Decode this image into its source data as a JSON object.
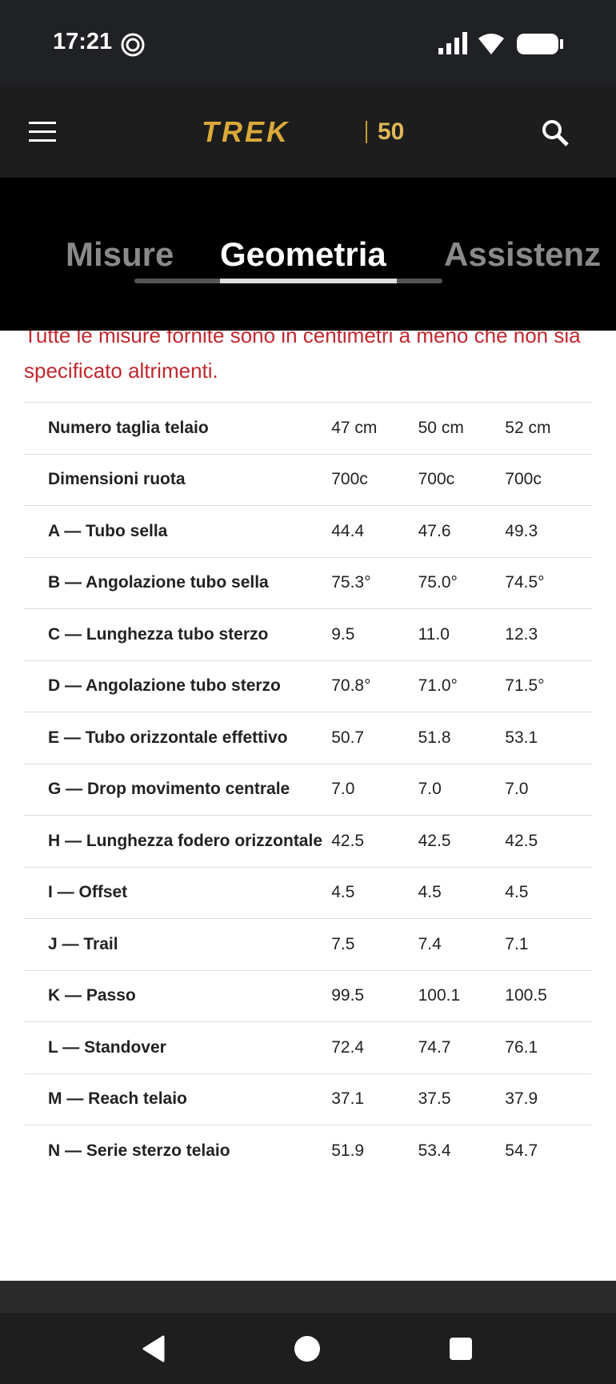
{
  "status": {
    "time": "17:21"
  },
  "header": {
    "brand": "TREK",
    "badge": "50"
  },
  "tabs": [
    "Misure",
    "Geometria",
    "Assistenz"
  ],
  "note": "Tutte le misure fornite sono in centimetri a meno che non sia specificato altrimenti.",
  "table": {
    "rows": [
      [
        "Numero taglia telaio",
        "47 cm",
        "50 cm",
        "52 cm"
      ],
      [
        "Dimensioni ruota",
        "700c",
        "700c",
        "700c"
      ],
      [
        "A — Tubo sella",
        "44.4",
        "47.6",
        "49.3"
      ],
      [
        "B — Angolazione tubo sella",
        "75.3°",
        "75.0°",
        "74.5°"
      ],
      [
        "C — Lunghezza tubo sterzo",
        "9.5",
        "11.0",
        "12.3"
      ],
      [
        "D — Angolazione tubo sterzo",
        "70.8°",
        "71.0°",
        "71.5°"
      ],
      [
        "E — Tubo orizzontale effettivo",
        "50.7",
        "51.8",
        "53.1"
      ],
      [
        "G — Drop movimento centrale",
        "7.0",
        "7.0",
        "7.0"
      ],
      [
        "H — Lunghezza fodero orizzontale",
        "42.5",
        "42.5",
        "42.5"
      ],
      [
        "I — Offset",
        "4.5",
        "4.5",
        "4.5"
      ],
      [
        "J — Trail",
        "7.5",
        "7.4",
        "7.1"
      ],
      [
        "K — Passo",
        "99.5",
        "100.1",
        "100.5"
      ],
      [
        "L — Standover",
        "72.4",
        "74.7",
        "76.1"
      ],
      [
        "M — Reach telaio",
        "37.1",
        "37.5",
        "37.9"
      ],
      [
        "N — Serie sterzo telaio",
        "51.9",
        "53.4",
        "54.7"
      ]
    ]
  }
}
